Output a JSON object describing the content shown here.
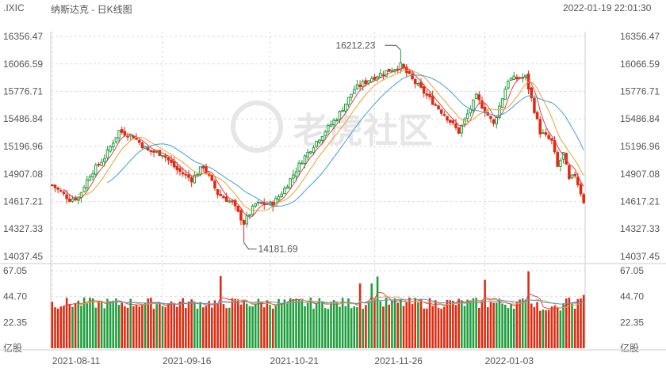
{
  "header": {
    "symbol": ".IXIC",
    "name": "纳斯达克 - 日K线图",
    "timestamp": "2022-01-19 22:01:30"
  },
  "watermark": "老虎社区",
  "colors": {
    "up": "#1e9e3c",
    "down": "#e02a10",
    "ma5": "#d9424f",
    "ma10": "#f0a030",
    "ma20": "#3fa0d8",
    "grid": "#dcdcdc"
  },
  "chart_data": [
    {
      "type": "candlestick",
      "name": "price",
      "y_ticks": [
        "16356.47",
        "16066.59",
        "15776.71",
        "15486.84",
        "15196.96",
        "14907.08",
        "14617.21",
        "14327.33",
        "14037.45"
      ],
      "ylim": [
        14037.45,
        16356.47
      ],
      "x_ticks": [
        "2021-08-11",
        "2021-09-16",
        "2021-10-21",
        "2021-11-26",
        "2022-01-03"
      ],
      "annotations": [
        {
          "label": "16212.23",
          "value": 16212.23
        },
        {
          "label": "14181.69",
          "value": 14181.69
        }
      ],
      "series_colors_note": "up=green, down=red",
      "candles": []
    },
    {
      "type": "bar",
      "name": "volume",
      "y_ticks": [
        "67.05",
        "44.70",
        "22.35"
      ],
      "ylim": [
        0,
        67.05
      ],
      "unit": "亿股",
      "values": []
    }
  ]
}
